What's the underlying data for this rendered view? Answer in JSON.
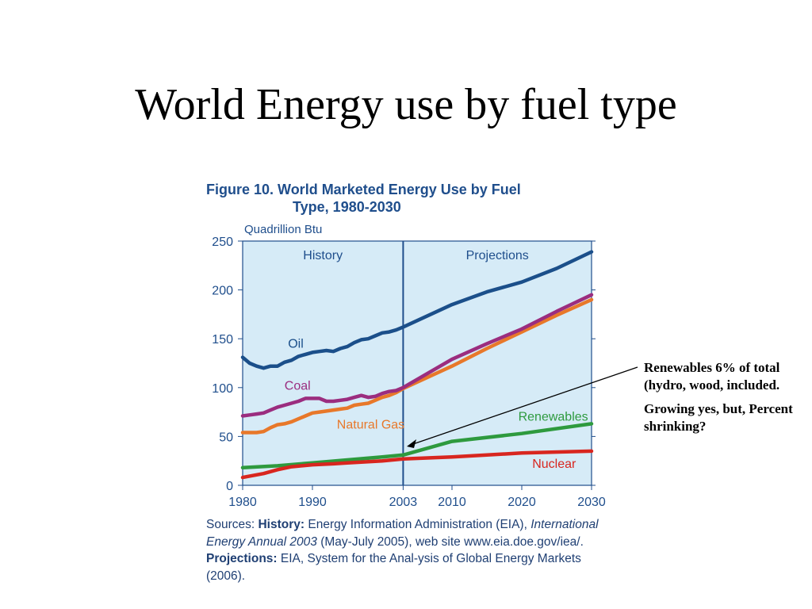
{
  "slide": {
    "title": "World Energy use by fuel type"
  },
  "figure": {
    "title_line1": "Figure 10.  World Marketed Energy Use by Fuel",
    "title_line2": "Type, 1980-2030",
    "units": "Quadrillion Btu",
    "sources": {
      "prefix": "Sources: ",
      "history_label": "History:",
      "history_text": " Energy Information Administration (EIA),",
      "publication": "International Energy Annual 2003",
      "publication_rest": " (May-July 2005), web site www.eia.doe.gov/iea/. ",
      "projections_label": "Projections:",
      "projections_text": " EIA, System for the Anal-ysis of Global Energy Markets (2006)."
    }
  },
  "callout": {
    "text1": "Renewables 6% of total (hydro, wood, included.",
    "text2": "Growing yes, but, Percent shrinking?"
  },
  "chart_data": {
    "type": "line",
    "title": "Figure 10.  World Marketed Energy Use by Fuel Type, 1980-2030",
    "ylabel": "Quadrillion Btu",
    "xlabel": "",
    "x_ticks": [
      1980,
      1990,
      2003,
      2010,
      2020,
      2030
    ],
    "y_ticks": [
      0,
      50,
      100,
      150,
      200,
      250
    ],
    "xlim": [
      1980,
      2030
    ],
    "ylim": [
      0,
      250
    ],
    "divider_year": 2003,
    "regions": [
      {
        "label": "History"
      },
      {
        "label": "Projections"
      }
    ],
    "background_color": "#d6ebf7",
    "series": [
      {
        "name": "Oil",
        "color": "#1b4f8a",
        "x": [
          1980,
          1981,
          1982,
          1983,
          1984,
          1985,
          1986,
          1987,
          1988,
          1989,
          1990,
          1991,
          1992,
          1993,
          1994,
          1995,
          1996,
          1997,
          1998,
          1999,
          2000,
          2001,
          2002,
          2003,
          2010,
          2015,
          2020,
          2025,
          2030
        ],
        "y": [
          131,
          125,
          122,
          120,
          122,
          122,
          126,
          128,
          132,
          134,
          136,
          137,
          138,
          137,
          140,
          142,
          146,
          149,
          150,
          153,
          156,
          157,
          159,
          162,
          185,
          198,
          208,
          222,
          239
        ]
      },
      {
        "name": "Coal",
        "color": "#9b2d7f",
        "x": [
          1980,
          1981,
          1982,
          1983,
          1984,
          1985,
          1986,
          1987,
          1988,
          1989,
          1990,
          1991,
          1992,
          1993,
          1994,
          1995,
          1996,
          1997,
          1998,
          1999,
          2000,
          2001,
          2002,
          2003,
          2010,
          2015,
          2020,
          2025,
          2030
        ],
        "y": [
          71,
          72,
          73,
          74,
          77,
          80,
          82,
          84,
          86,
          89,
          89,
          89,
          86,
          86,
          87,
          88,
          90,
          92,
          90,
          91,
          94,
          96,
          97,
          100,
          129,
          145,
          160,
          178,
          195
        ]
      },
      {
        "name": "Natural Gas",
        "color": "#e8782a",
        "x": [
          1980,
          1981,
          1982,
          1983,
          1984,
          1985,
          1986,
          1987,
          1988,
          1989,
          1990,
          1991,
          1992,
          1993,
          1994,
          1995,
          1996,
          1997,
          1998,
          1999,
          2000,
          2001,
          2002,
          2003,
          2010,
          2015,
          2020,
          2025,
          2030
        ],
        "y": [
          54,
          54,
          54,
          55,
          59,
          62,
          63,
          65,
          68,
          71,
          74,
          75,
          76,
          77,
          78,
          79,
          82,
          83,
          84,
          87,
          90,
          92,
          95,
          99,
          122,
          140,
          157,
          174,
          190
        ]
      },
      {
        "name": "Renewables",
        "color": "#2e9a3e",
        "x": [
          1980,
          1985,
          1990,
          1995,
          2000,
          2003,
          2010,
          2020,
          2030
        ],
        "y": [
          18,
          20,
          23,
          26,
          29,
          31,
          45,
          53,
          63
        ]
      },
      {
        "name": "Nuclear",
        "color": "#d8261f",
        "x": [
          1980,
          1983,
          1985,
          1987,
          1990,
          1993,
          1995,
          2000,
          2003,
          2010,
          2020,
          2030
        ],
        "y": [
          8,
          12,
          16,
          19,
          21,
          22,
          23,
          25,
          27,
          29,
          33,
          35
        ]
      }
    ]
  }
}
